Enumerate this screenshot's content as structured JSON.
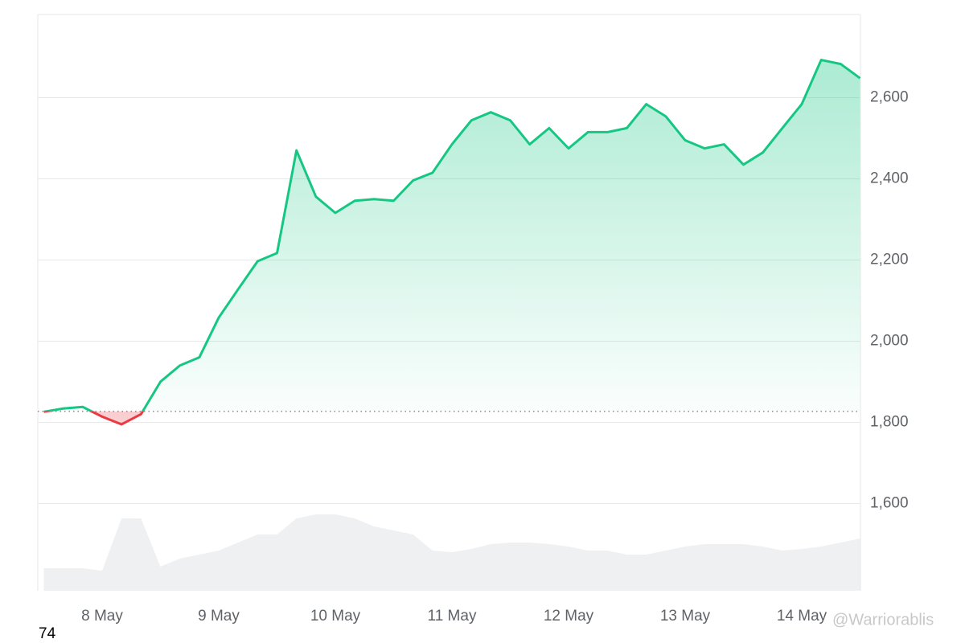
{
  "chart_data": {
    "type": "line",
    "categories": [
      null,
      null,
      null,
      "8 May",
      null,
      null,
      null,
      null,
      null,
      "9 May",
      null,
      null,
      null,
      null,
      null,
      "10 May",
      null,
      null,
      null,
      null,
      null,
      "11 May",
      null,
      null,
      null,
      null,
      null,
      "12 May",
      null,
      null,
      null,
      null,
      null,
      "13 May",
      null,
      null,
      null,
      null,
      null,
      "14 May",
      null,
      null,
      null
    ],
    "values": [
      1826,
      1834,
      1838,
      1814,
      1795,
      1820,
      1900,
      1940,
      1960,
      2058,
      2128,
      2197,
      2217,
      2470,
      2356,
      2316,
      2346,
      2350,
      2346,
      2396,
      2415,
      2485,
      2544,
      2564,
      2544,
      2485,
      2525,
      2475,
      2515,
      2515,
      2525,
      2584,
      2554,
      2495,
      2475,
      2485,
      2435,
      2465,
      2525,
      2584,
      2693,
      2683,
      2648
    ],
    "volume": [
      28,
      28,
      28,
      25,
      90,
      90,
      30,
      40,
      45,
      50,
      60,
      70,
      70,
      90,
      95,
      95,
      90,
      80,
      75,
      70,
      50,
      48,
      52,
      58,
      60,
      60,
      58,
      55,
      50,
      50,
      45,
      45,
      50,
      55,
      58,
      58,
      58,
      55,
      50,
      52,
      55,
      60,
      65
    ],
    "baseline": 1827,
    "up_color": "#16c784",
    "down_color": "#ea3943",
    "volume_color": "#eef0f2",
    "ylim": [
      1385,
      2805
    ],
    "yticks": [
      {
        "value": 1600,
        "label": "1,600"
      },
      {
        "value": 1800,
        "label": "1,800"
      },
      {
        "value": 2000,
        "label": "2,000"
      },
      {
        "value": 2200,
        "label": "2,200"
      },
      {
        "value": 2400,
        "label": "2,400"
      },
      {
        "value": 2600,
        "label": "2,600"
      }
    ],
    "grid": true,
    "annotations": [
      "74",
      "@Warriorablis"
    ]
  }
}
